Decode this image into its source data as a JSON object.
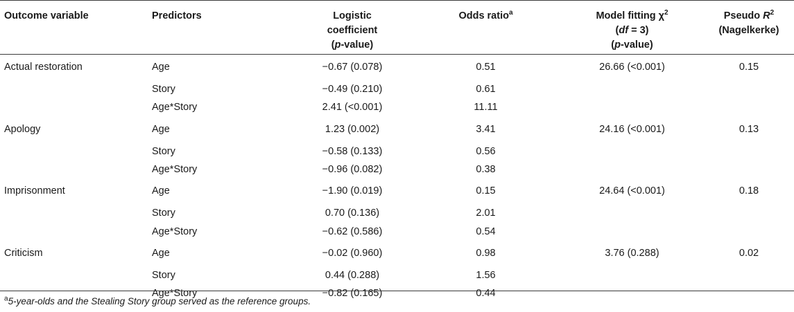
{
  "headers": {
    "outcome": "Outcome variable",
    "predictors": "Predictors",
    "coef_line1": "Logistic",
    "coef_line2": "coefficient",
    "coef_line3_italic": "p",
    "coef_line3_rest": "-value)",
    "odds": "Odds ratio",
    "odds_sup": "a",
    "fit_line1": "Model fitting χ",
    "fit_sup": "2",
    "fit_df_italic": "df",
    "fit_df_rest": " = 3)",
    "fit_p_italic": "p",
    "fit_p_rest": "-value)",
    "pseudo_line1": "Pseudo ",
    "pseudo_R": "R",
    "pseudo_sup": "2",
    "pseudo_line2": "(Nagelkerke)"
  },
  "rows": [
    {
      "outcome": "Actual restoration",
      "predictor": "Age",
      "coef": "−0.67 (0.078)",
      "odds": "0.51",
      "fit": "26.66 (<0.001)",
      "pseudo": "0.15"
    },
    {
      "outcome": "",
      "predictor": "Story",
      "coef": "−0.49 (0.210)",
      "odds": "0.61",
      "fit": "",
      "pseudo": ""
    },
    {
      "outcome": "",
      "predictor": "Age*Story",
      "coef": "2.41 (<0.001)",
      "odds": "11.11",
      "fit": "",
      "pseudo": ""
    },
    {
      "outcome": "Apology",
      "predictor": "Age",
      "coef": "1.23 (0.002)",
      "odds": "3.41",
      "fit": "24.16 (<0.001)",
      "pseudo": "0.13"
    },
    {
      "outcome": "",
      "predictor": "Story",
      "coef": "−0.58 (0.133)",
      "odds": "0.56",
      "fit": "",
      "pseudo": ""
    },
    {
      "outcome": "",
      "predictor": "Age*Story",
      "coef": "−0.96 (0.082)",
      "odds": "0.38",
      "fit": "",
      "pseudo": ""
    },
    {
      "outcome": "Imprisonment",
      "predictor": "Age",
      "coef": "−1.90 (0.019)",
      "odds": "0.15",
      "fit": "24.64 (<0.001)",
      "pseudo": "0.18"
    },
    {
      "outcome": "",
      "predictor": "Story",
      "coef": "0.70 (0.136)",
      "odds": "2.01",
      "fit": "",
      "pseudo": ""
    },
    {
      "outcome": "",
      "predictor": "Age*Story",
      "coef": "−0.62 (0.586)",
      "odds": "0.54",
      "fit": "",
      "pseudo": ""
    },
    {
      "outcome": "Criticism",
      "predictor": "Age",
      "coef": "−0.02 (0.960)",
      "odds": "0.98",
      "fit": "3.76 (0.288)",
      "pseudo": "0.02"
    },
    {
      "outcome": "",
      "predictor": "Story",
      "coef": "0.44 (0.288)",
      "odds": "1.56",
      "fit": "",
      "pseudo": ""
    },
    {
      "outcome": "",
      "predictor": "Age*Story",
      "coef": "−0.82 (0.165)",
      "odds": "0.44",
      "fit": "",
      "pseudo": ""
    }
  ],
  "footnote": {
    "marker": "a",
    "text": "5-year-olds and the Stealing Story group served as the reference groups."
  }
}
